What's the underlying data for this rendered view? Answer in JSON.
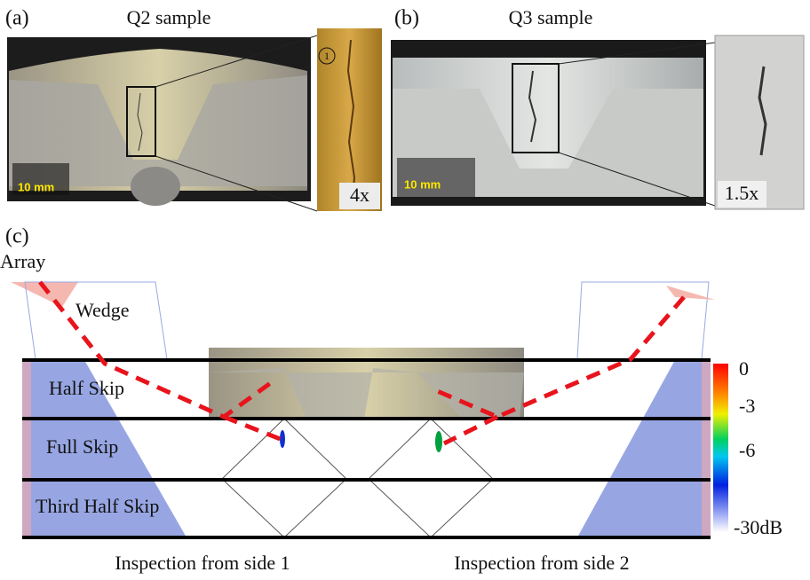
{
  "panels": {
    "a": {
      "label": "(a)",
      "title": "Q2 sample",
      "scale": "10 mm",
      "zoom_marker": "1",
      "magnification": "4x"
    },
    "b": {
      "label": "(b)",
      "title": "Q3 sample",
      "scale": "10 mm",
      "magnification": "1.5x"
    },
    "c": {
      "label": "(c)",
      "array": "Array",
      "wedge": "Wedge",
      "zones": [
        "Half Skip",
        "Full Skip",
        "Third Half Skip"
      ],
      "colorbar": [
        "0",
        "-3",
        "-6",
        "-30dB"
      ],
      "captions": [
        "Inspection from side 1",
        "Inspection from side 2"
      ]
    }
  }
}
